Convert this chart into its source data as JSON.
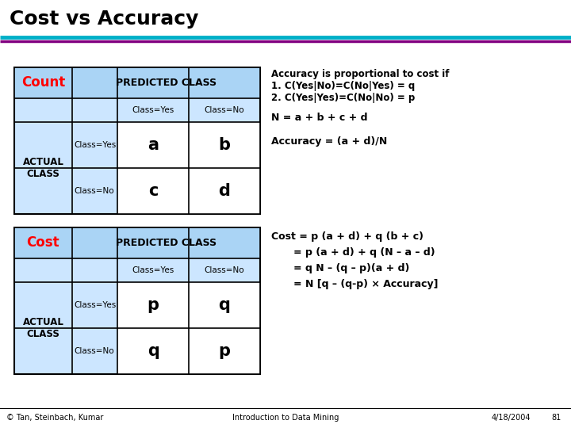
{
  "title": "Cost vs Accuracy",
  "title_fontsize": 18,
  "title_fontweight": "bold",
  "bg_color": "#ffffff",
  "table_bg": "#cce6ff",
  "table_header_bg": "#aad4f5",
  "count_label": "Count",
  "cost_label": "Cost",
  "label_color_red": "#ff0000",
  "count_cells": [
    [
      "a",
      "b"
    ],
    [
      "c",
      "d"
    ]
  ],
  "cost_cells": [
    [
      "p",
      "q"
    ],
    [
      "q",
      "p"
    ]
  ],
  "footer_left": "© Tan, Steinbach, Kumar",
  "footer_center": "Introduction to Data Mining",
  "footer_right": "4/18/2004",
  "footer_page": "81",
  "line_cyan": "#00b0c8",
  "line_purple": "#800080"
}
